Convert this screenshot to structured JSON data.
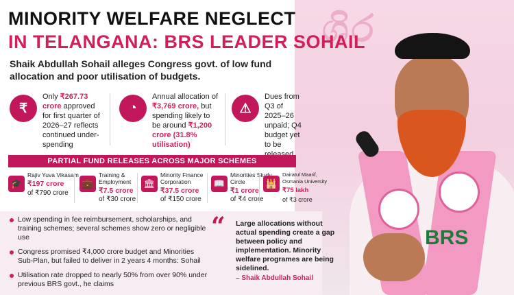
{
  "headline": {
    "line1": "MINORITY WELFARE NEGLECT",
    "line2": "IN TELANGANA: BRS LEADER SOHAIL"
  },
  "subhead": "Shaik Abdullah Sohail alleges Congress govt. of low fund allocation and poor utilisation of budgets.",
  "stats": [
    {
      "icon": "money-bag-icon",
      "glyph": "₹",
      "before": "Only ",
      "highlight": "₹267.73 crore",
      "after": " approved for first quarter of 2026–27 reflects continued under-spending"
    },
    {
      "icon": "pie-chart-icon",
      "glyph": "◔",
      "before": "Annual allocation of ",
      "highlight": "₹3,769 crore,",
      "after": " but spending likely to be around ",
      "highlight2": "₹1,200 crore (31.8% utilisation)"
    },
    {
      "icon": "document-warning-icon",
      "glyph": "⚠",
      "before": "Dues from Q3 of 2025–26 unpaid; Q4 budget yet to be released"
    }
  ],
  "section_title": "PARTIAL FUND RELEASES ACROSS MAJOR SCHEMES",
  "schemes": [
    {
      "icon": "graduate-icon",
      "glyph": "🎓",
      "name": "Rajiv Yuva Vikasam",
      "value": "₹197 crore",
      "of": "of ₹790 crore"
    },
    {
      "icon": "briefcase-icon",
      "glyph": "💼",
      "name": "Training &\nEmployment",
      "value": "₹7.5 crore",
      "of": "of ₹30 crore"
    },
    {
      "icon": "bank-icon",
      "glyph": "🏛",
      "name": "Minority Finance\nCorporation",
      "value": "₹37.5 crore",
      "of": "of ₹150 crore"
    },
    {
      "icon": "book-icon",
      "glyph": "📖",
      "name": "Minorities Study\nCircle",
      "value": "₹1 crore",
      "of": "of ₹4 crore"
    },
    {
      "icon": "monument-icon",
      "glyph": "🕌",
      "name": "Dairatul Maarif,\nOsmania University",
      "value": "₹75 lakh",
      "of": "of ₹3 crore"
    }
  ],
  "bullets": [
    "Low spending in fee reimbursement, scholarships, and training schemes; several schemes show zero or negligible use",
    "Congress promised ₹4,000 crore budget and Minorities Sub-Plan, but failed to deliver in 2 years 4 months: Sohail",
    "Utilisation rate dropped to nearly 50% from over 90% under previous BRS govt., he claims"
  ],
  "quote": {
    "text": "Large allocations without actual spending create a gap between policy and implementation. Minority welfare programes are being sidelined.",
    "author": "– Shaik Abdullah Sohail"
  },
  "photo": {
    "party_text": "BRS"
  },
  "colors": {
    "accent": "#c2185b",
    "highlight": "#d11f5a",
    "banner_pink": "#f3cfe0"
  }
}
